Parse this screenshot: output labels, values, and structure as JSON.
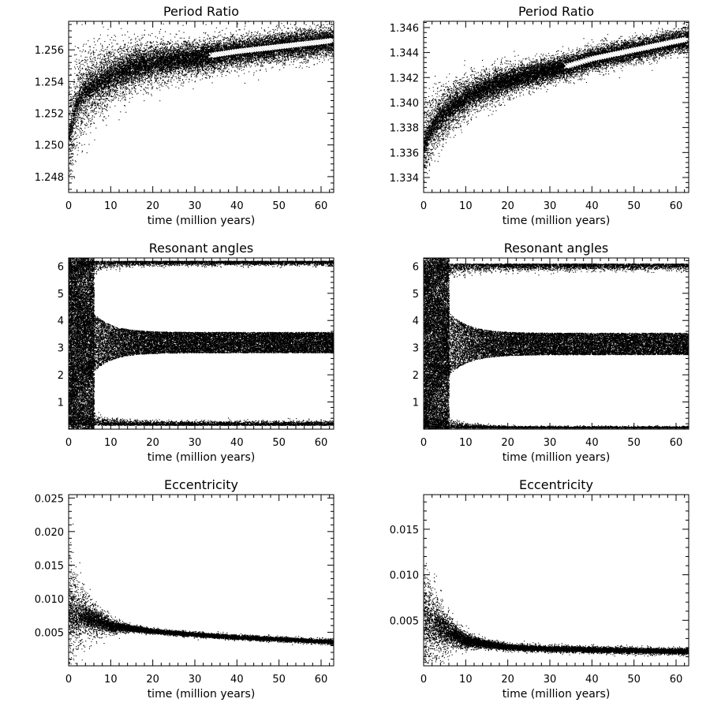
{
  "chart_data": [
    {
      "type": "scatter",
      "title": "Period Ratio",
      "xlabel": "time (million years)",
      "ylabel": "",
      "xlim": [
        0,
        63
      ],
      "ylim": [
        1.247,
        1.2578
      ],
      "xticks": [
        0,
        10,
        20,
        30,
        40,
        50,
        60
      ],
      "yticks": [
        1.248,
        1.25,
        1.252,
        1.254,
        1.256
      ],
      "ytick_labels": [
        "1.248",
        "1.250",
        "1.252",
        "1.254",
        "1.256"
      ],
      "series": [
        {
          "values_description_points": [
            [
              0,
              1.2505
            ],
            [
              2,
              1.2528
            ],
            [
              5,
              1.2536
            ],
            [
              10,
              1.2544
            ],
            [
              15,
              1.2549
            ],
            [
              20,
              1.2552
            ],
            [
              25,
              1.2554
            ],
            [
              30,
              1.2555
            ],
            [
              35,
              1.2557
            ],
            [
              40,
              1.2559
            ],
            [
              50,
              1.2562
            ],
            [
              60,
              1.2565
            ],
            [
              63,
              1.2566
            ]
          ],
          "spread_start": 0.0035,
          "spread_end": 0.001
        }
      ],
      "overlay_markers": {
        "x_start": 34,
        "x_end": 63,
        "color": "#ffffff"
      }
    },
    {
      "type": "scatter",
      "title": "Period Ratio",
      "xlabel": "time (million years)",
      "ylabel": "",
      "xlim": [
        0,
        63
      ],
      "ylim": [
        1.3328,
        1.3465
      ],
      "xticks": [
        0,
        10,
        20,
        30,
        40,
        50,
        60
      ],
      "yticks": [
        1.334,
        1.336,
        1.338,
        1.34,
        1.342,
        1.344,
        1.346
      ],
      "ytick_labels": [
        "1.334",
        "1.336",
        "1.338",
        "1.340",
        "1.342",
        "1.344",
        "1.346"
      ],
      "series": [
        {
          "values_description_points": [
            [
              0,
              1.3365
            ],
            [
              2,
              1.3382
            ],
            [
              5,
              1.3392
            ],
            [
              10,
              1.3404
            ],
            [
              15,
              1.3412
            ],
            [
              20,
              1.3418
            ],
            [
              25,
              1.3422
            ],
            [
              30,
              1.3426
            ],
            [
              35,
              1.343
            ],
            [
              40,
              1.3435
            ],
            [
              50,
              1.3442
            ],
            [
              60,
              1.3449
            ],
            [
              63,
              1.3451
            ]
          ],
          "spread_start": 0.003,
          "spread_end": 0.001
        }
      ],
      "overlay_markers": {
        "x_start": 34,
        "x_end": 63,
        "color": "#ffffff"
      }
    },
    {
      "type": "scatter",
      "title": "Resonant angles",
      "xlabel": "time (million years)",
      "ylabel": "",
      "xlim": [
        0,
        63
      ],
      "ylim": [
        0,
        6.3
      ],
      "xticks": [
        0,
        10,
        20,
        30,
        40,
        50,
        60
      ],
      "yticks": [
        1,
        2,
        3,
        4,
        5,
        6
      ],
      "ytick_labels": [
        "1",
        "2",
        "3",
        "4",
        "5",
        "6"
      ],
      "series": [
        {
          "name_hidden": "",
          "center": 3.2,
          "early_halfwidth": 3.1,
          "late_halfwidth": 0.38,
          "settle_time": 13
        },
        {
          "center": 0.15,
          "late_halfwidth": 0.12
        },
        {
          "center": 6.1,
          "late_halfwidth": 0.12
        }
      ]
    },
    {
      "type": "scatter",
      "title": "Resonant angles",
      "xlabel": "time (million years)",
      "ylabel": "",
      "xlim": [
        0,
        63
      ],
      "ylim": [
        0,
        6.3
      ],
      "xticks": [
        0,
        10,
        20,
        30,
        40,
        50,
        60
      ],
      "yticks": [
        1,
        2,
        3,
        4,
        5,
        6
      ],
      "ytick_labels": [
        "1",
        "2",
        "3",
        "4",
        "5",
        "6"
      ],
      "series": [
        {
          "center": 3.15,
          "early_halfwidth": 3.1,
          "late_halfwidth": 0.4,
          "settle_time": 14
        },
        {
          "center": 0.05,
          "late_halfwidth": 0.05
        },
        {
          "center": 6.0,
          "late_halfwidth": 0.18
        }
      ]
    },
    {
      "type": "scatter",
      "title": "Eccentricity",
      "xlabel": "time (million years)",
      "ylabel": "",
      "xlim": [
        0,
        63
      ],
      "ylim": [
        0,
        0.0255
      ],
      "xticks": [
        0,
        10,
        20,
        30,
        40,
        50,
        60
      ],
      "yticks": [
        0.005,
        0.01,
        0.015,
        0.02,
        0.025
      ],
      "ytick_labels": [
        "0.005",
        "0.010",
        "0.015",
        "0.020",
        "0.025"
      ],
      "series": [
        {
          "values_description_points": [
            [
              0,
              0.008
            ],
            [
              5,
              0.0072
            ],
            [
              10,
              0.006
            ],
            [
              15,
              0.0056
            ],
            [
              20,
              0.0052
            ],
            [
              30,
              0.0047
            ],
            [
              40,
              0.0043
            ],
            [
              50,
              0.004
            ],
            [
              63,
              0.0036
            ]
          ],
          "spread_start": 0.01,
          "spread_end": 0.0002
        }
      ]
    },
    {
      "type": "scatter",
      "title": "Eccentricity",
      "xlabel": "time (million years)",
      "ylabel": "",
      "xlim": [
        0,
        63
      ],
      "ylim": [
        0,
        0.0188
      ],
      "xticks": [
        0,
        10,
        20,
        30,
        40,
        50,
        60
      ],
      "yticks": [
        0.005,
        0.01,
        0.015
      ],
      "ytick_labels": [
        "0.005",
        "0.010",
        "0.015"
      ],
      "series": [
        {
          "values_description_points": [
            [
              0,
              0.005
            ],
            [
              5,
              0.004
            ],
            [
              10,
              0.0028
            ],
            [
              15,
              0.0024
            ],
            [
              20,
              0.0021
            ],
            [
              30,
              0.0019
            ],
            [
              40,
              0.0018
            ],
            [
              50,
              0.0017
            ],
            [
              63,
              0.0016
            ]
          ],
          "spread_start": 0.008,
          "spread_end": 0.0002
        }
      ]
    }
  ]
}
